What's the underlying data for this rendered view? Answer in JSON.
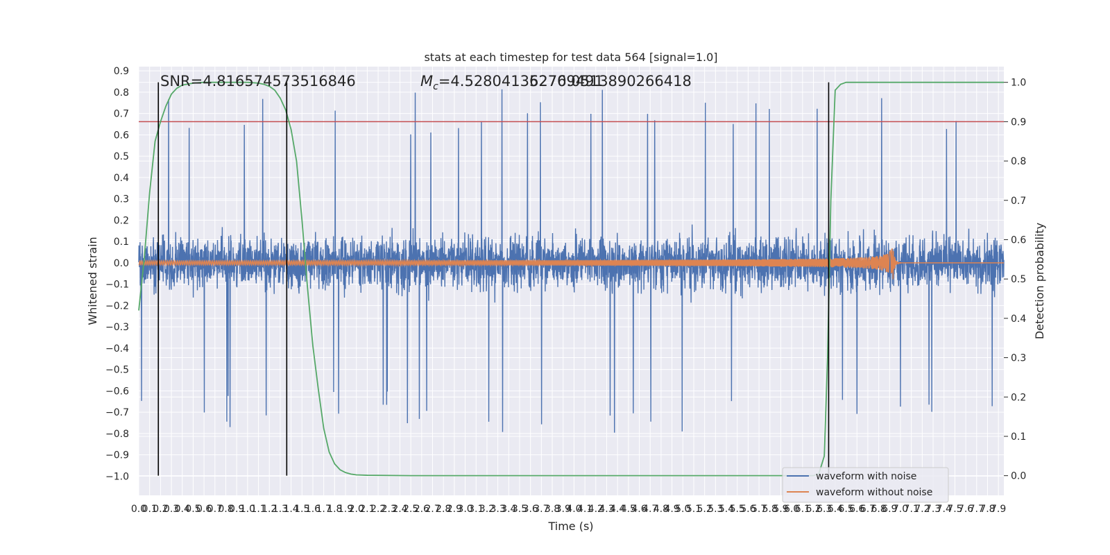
{
  "chart_data": {
    "type": "line",
    "title": "stats at each timestep for test data 564 [signal=1.0]",
    "xlabel": "Time (s)",
    "ylabel": "Whitened strain",
    "y2label": "Detection probability",
    "xlim": [
      0.0,
      7.95
    ],
    "ylim": [
      -1.09,
      0.92
    ],
    "y2lim": [
      -0.05,
      1.04
    ],
    "x_ticks": [
      "0.0",
      "0.1",
      "0.2",
      "0.3",
      "0.4",
      "0.5",
      "0.6",
      "0.7",
      "0.8",
      "0.9",
      "1.0",
      "1.1",
      "1.2",
      "1.3",
      "1.4",
      "1.5",
      "1.6",
      "1.7",
      "1.8",
      "1.9",
      "2.0",
      "2.1",
      "2.2",
      "2.3",
      "2.4",
      "2.5",
      "2.6",
      "2.7",
      "2.8",
      "2.9",
      "3.0",
      "3.1",
      "3.2",
      "3.3",
      "3.4",
      "3.5",
      "3.6",
      "3.7",
      "3.8",
      "3.9",
      "4.0",
      "4.1",
      "4.2",
      "4.3",
      "4.4",
      "4.5",
      "4.6",
      "4.7",
      "4.8",
      "4.9",
      "5.0",
      "5.1",
      "5.2",
      "5.3",
      "5.4",
      "5.5",
      "5.6",
      "5.7",
      "5.8",
      "5.9",
      "6.0",
      "6.1",
      "6.2",
      "6.3",
      "6.4",
      "6.5",
      "6.6",
      "6.7",
      "6.8",
      "6.9",
      "7.0",
      "7.1",
      "7.2",
      "7.3",
      "7.4",
      "7.5",
      "7.6",
      "7.7",
      "7.8",
      "7.9"
    ],
    "y_ticks": [
      "0.9",
      "0.8",
      "0.7",
      "0.6",
      "0.5",
      "0.4",
      "0.3",
      "0.2",
      "0.1",
      "0.0",
      "−0.1",
      "−0.2",
      "−0.3",
      "−0.4",
      "−0.5",
      "−0.6",
      "−0.7",
      "−0.8",
      "−0.9",
      "−1.0"
    ],
    "y2_ticks": [
      "1.0",
      "0.9",
      "0.8",
      "0.7",
      "0.6",
      "0.5",
      "0.4",
      "0.3",
      "0.2",
      "0.1",
      "0.0"
    ],
    "threshold": 0.9,
    "vlines": [
      0.18,
      1.36,
      6.34
    ],
    "annotations": {
      "snr": "SNR=4.816574573516846",
      "mc_symbol": "M",
      "mc_sub": "c",
      "mc_value": "=4.528041362769491",
      "overlap": "5270.0513890266418"
    },
    "series": [
      {
        "name": "waveform with noise",
        "color": "#4c72b0",
        "amplitude_envelope": [
          0.45,
          0.6,
          0.82
        ]
      },
      {
        "name": "waveform without noise",
        "color": "#dd8452",
        "chirp_start_amp": 0.01,
        "chirp_peak_amp": 0.09,
        "merger_time": 6.93
      },
      {
        "name": "detection probability",
        "color": "#55a868",
        "x": [
          0.0,
          0.05,
          0.1,
          0.15,
          0.2,
          0.25,
          0.3,
          0.35,
          0.4,
          0.5,
          0.6,
          0.7,
          0.8,
          0.9,
          1.0,
          1.1,
          1.15,
          1.2,
          1.25,
          1.3,
          1.35,
          1.4,
          1.45,
          1.5,
          1.55,
          1.6,
          1.65,
          1.7,
          1.75,
          1.8,
          1.85,
          1.9,
          1.95,
          2.0,
          2.1,
          2.5,
          3.0,
          3.5,
          4.0,
          4.5,
          5.0,
          5.5,
          6.0,
          6.1,
          6.2,
          6.25,
          6.3,
          6.33,
          6.36,
          6.4,
          6.45,
          6.5,
          6.6,
          7.0,
          7.5,
          7.95
        ],
        "values": [
          0.42,
          0.55,
          0.72,
          0.85,
          0.9,
          0.94,
          0.97,
          0.985,
          0.993,
          0.998,
          1.0,
          1.0,
          1.0,
          1.0,
          1.0,
          0.998,
          0.995,
          0.99,
          0.98,
          0.96,
          0.93,
          0.88,
          0.8,
          0.65,
          0.48,
          0.33,
          0.22,
          0.12,
          0.06,
          0.03,
          0.015,
          0.008,
          0.004,
          0.002,
          0.001,
          0.0,
          0.0,
          0.0,
          0.0,
          0.0,
          0.0,
          0.0,
          0.0,
          0.0,
          0.0,
          0.005,
          0.05,
          0.3,
          0.7,
          0.98,
          0.995,
          1.0,
          1.0,
          1.0,
          1.0,
          1.0
        ]
      }
    ],
    "legend": {
      "position": "lower-right",
      "entries": [
        "waveform with noise",
        "waveform without noise"
      ]
    },
    "grid": true,
    "colors": {
      "axes_bg": "#eaeaf2",
      "grid": "#ffffff",
      "threshold": "#c44e52",
      "vline": "#000000",
      "text": "#262626"
    }
  }
}
